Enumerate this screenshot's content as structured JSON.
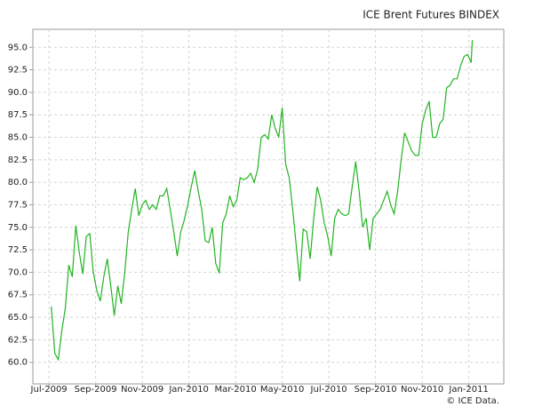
{
  "chart_data": {
    "type": "line",
    "title": "ICE Brent Futures BINDEX",
    "credit": "© ICE Data.",
    "x": [
      0.1,
      0.25,
      0.4,
      0.55,
      0.7,
      0.85,
      1,
      1.15,
      1.3,
      1.45,
      1.6,
      1.75,
      1.9,
      2.05,
      2.2,
      2.35,
      2.5,
      2.65,
      2.8,
      2.95,
      3.1,
      3.25,
      3.4,
      3.55,
      3.7,
      3.85,
      4,
      4.15,
      4.3,
      4.45,
      4.6,
      4.75,
      4.9,
      5.05,
      5.2,
      5.35,
      5.5,
      5.65,
      5.8,
      5.95,
      6.1,
      6.25,
      6.4,
      6.55,
      6.7,
      6.85,
      7,
      7.15,
      7.3,
      7.45,
      7.6,
      7.75,
      7.9,
      8.05,
      8.2,
      8.35,
      8.5,
      8.65,
      8.8,
      8.95,
      9.1,
      9.25,
      9.4,
      9.55,
      9.7,
      9.85,
      10,
      10.15,
      10.3,
      10.45,
      10.6,
      10.75,
      10.9,
      11.05,
      11.2,
      11.35,
      11.5,
      11.65,
      11.8,
      11.95,
      12.1,
      12.25,
      12.4,
      12.55,
      12.7,
      12.85,
      13,
      13.15,
      13.3,
      13.45,
      13.6,
      13.75,
      13.9,
      14.05,
      14.2,
      14.35,
      14.5,
      14.65,
      14.8,
      14.95,
      15.1,
      15.25,
      15.4,
      15.55,
      15.7,
      15.85,
      16,
      16.15,
      16.3,
      16.45,
      16.6,
      16.75,
      16.9,
      17.05,
      17.2,
      17.35,
      17.5,
      17.65,
      17.8,
      17.95,
      18.1,
      18.15
    ],
    "series": [
      {
        "color": "#22b422",
        "values": [
          66.2,
          61.0,
          60.3,
          63.5,
          66.0,
          70.8,
          69.5,
          75.2,
          72.2,
          69.8,
          74.0,
          74.3,
          70.0,
          68.0,
          66.8,
          69.5,
          71.5,
          68.5,
          65.2,
          68.5,
          66.5,
          70.0,
          74.5,
          77.0,
          79.3,
          76.3,
          77.5,
          78.0,
          77.0,
          77.5,
          77.0,
          78.5,
          78.5,
          79.3,
          77.0,
          74.5,
          71.8,
          74.5,
          75.8,
          77.5,
          79.5,
          81.3,
          79.0,
          77.0,
          73.5,
          73.3,
          75.0,
          71.0,
          69.9,
          75.5,
          76.5,
          78.5,
          77.3,
          78.0,
          80.5,
          80.3,
          80.5,
          81.0,
          80.0,
          81.5,
          85.0,
          85.3,
          84.8,
          87.5,
          86.0,
          85.0,
          88.3,
          82.0,
          80.5,
          77.0,
          73.0,
          69.0,
          74.8,
          74.5,
          71.5,
          76.0,
          79.5,
          78.0,
          75.5,
          74.0,
          71.8,
          76.0,
          77.0,
          76.5,
          76.3,
          76.5,
          79.5,
          82.3,
          79.0,
          75.0,
          76.0,
          72.5,
          76.0,
          76.5,
          77.0,
          78.0,
          79.0,
          77.5,
          76.5,
          79.0,
          82.5,
          85.5,
          84.5,
          83.5,
          83.0,
          83.0,
          86.5,
          88.0,
          89.0,
          85.0,
          85.0,
          86.5,
          87.0,
          90.5,
          90.8,
          91.5,
          91.5,
          93.0,
          94.0,
          94.2,
          93.3,
          95.8
        ]
      }
    ],
    "xlim": [
      -0.69,
      19.5
    ],
    "ylim": [
      57.6,
      97.0
    ],
    "xticks": [
      {
        "value": 0,
        "label": "Jul-2009"
      },
      {
        "value": 2,
        "label": "Sep-2009"
      },
      {
        "value": 4,
        "label": "Nov-2009"
      },
      {
        "value": 6,
        "label": "Jan-2010"
      },
      {
        "value": 8,
        "label": "Mar-2010"
      },
      {
        "value": 10,
        "label": "May-2010"
      },
      {
        "value": 12,
        "label": "Jul-2010"
      },
      {
        "value": 14,
        "label": "Sep-2010"
      },
      {
        "value": 16,
        "label": "Nov-2010"
      },
      {
        "value": 18,
        "label": "Jan-2011"
      }
    ],
    "yticks": [
      {
        "value": 60,
        "label": "60.0"
      },
      62.5,
      {
        "value": 65,
        "label": "65.0"
      },
      67.5,
      {
        "value": 70,
        "label": "70.0"
      },
      72.5,
      {
        "value": 75,
        "label": "75.0"
      },
      77.5,
      {
        "value": 80,
        "label": "80.0"
      },
      82.5,
      {
        "value": 85,
        "label": "85.0"
      },
      87.5,
      {
        "value": 90,
        "label": "90.0"
      },
      92.5,
      {
        "value": 95,
        "label": "95.0"
      }
    ],
    "grid": true
  }
}
